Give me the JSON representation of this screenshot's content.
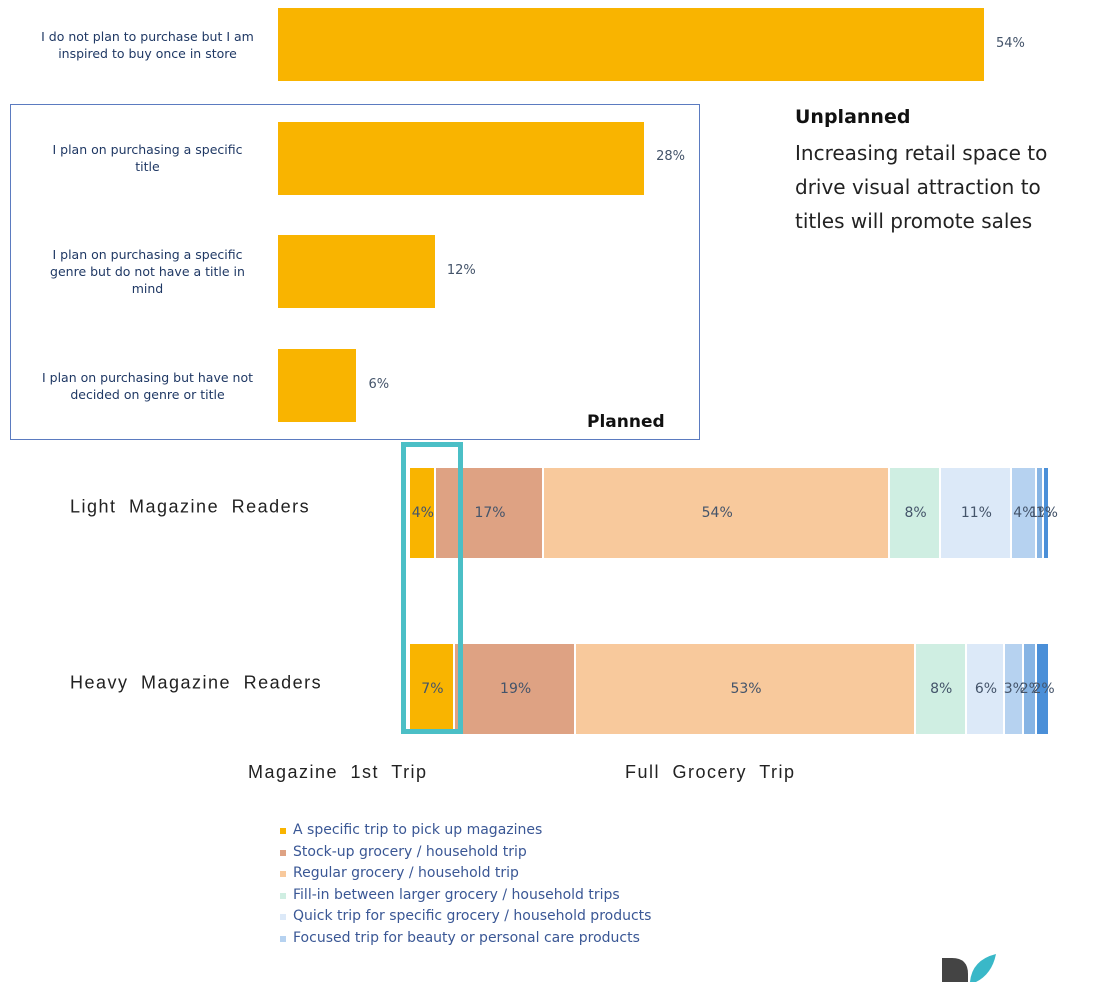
{
  "chart_data": [
    {
      "type": "bar",
      "categories": [
        "I do not plan to purchase but I am inspired to buy once in store",
        "I plan on purchasing a specific title",
        "I plan on purchasing a specific genre but do not have a title in mind",
        "I plan on purchasing but have not decided on genre or title"
      ],
      "values": [
        54,
        28,
        12,
        6
      ],
      "value_labels": [
        "54%",
        "28%",
        "12%",
        "6%"
      ],
      "color": "#f9b400",
      "annotations": [
        "Unplanned",
        "Increasing retail space to drive visual attraction to titles will promote sales",
        "Planned"
      ]
    },
    {
      "type": "stacked_bar",
      "categories": [
        "Light Magazine Readers",
        "Heavy Magazine Readers"
      ],
      "series": [
        {
          "name": "A specific trip to pick up magazines",
          "color": "#f9b400",
          "values": [
            4,
            7
          ],
          "value_labels": [
            "4%",
            "7%"
          ]
        },
        {
          "name": "Stock-up grocery / household trip",
          "color": "#dea283",
          "values": [
            17,
            19
          ],
          "value_labels": [
            "17%",
            "19%"
          ]
        },
        {
          "name": "Regular grocery / household trip",
          "color": "#f8c99c",
          "values": [
            54,
            53
          ],
          "value_labels": [
            "54%",
            "53%"
          ]
        },
        {
          "name": "Fill-in between larger grocery / household trips",
          "color": "#cfeee2",
          "values": [
            8,
            8
          ],
          "value_labels": [
            "8%",
            "8%"
          ]
        },
        {
          "name": "Quick trip for specific grocery / household products",
          "color": "#dce9f8",
          "values": [
            11,
            6
          ],
          "value_labels": [
            "11%",
            "6%"
          ]
        },
        {
          "name": "Focused trip for beauty or personal care products",
          "color": "#b6d2f0",
          "values": [
            4,
            3
          ],
          "value_labels": [
            "4%",
            "3%"
          ]
        },
        {
          "color": "#86b4e4",
          "values": [
            1,
            2
          ],
          "value_labels": [
            "1%",
            "2%"
          ]
        },
        {
          "color": "#4a8fd8",
          "values": [
            1,
            2
          ],
          "value_labels": [
            "1%",
            "2%"
          ]
        }
      ],
      "annotations": [
        "Magazine 1st Trip",
        "Full Grocery Trip"
      ]
    }
  ]
}
